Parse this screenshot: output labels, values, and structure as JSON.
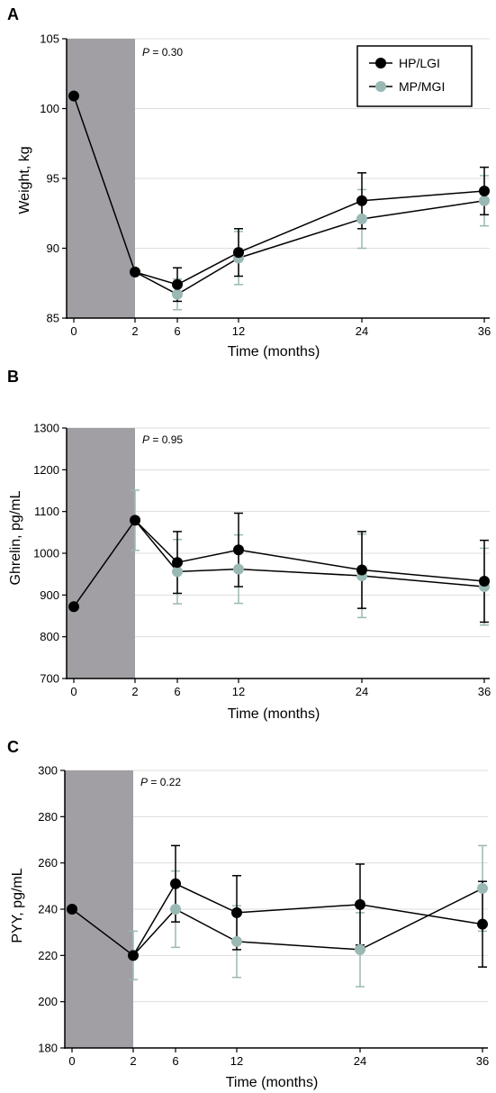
{
  "colors": {
    "series_hp": "#000000",
    "series_mp": "#9ab8b4",
    "shade": "#a19fa4",
    "grid": "#dddddd"
  },
  "legend": {
    "items": [
      "HP/LGI",
      "MP/MGI"
    ]
  },
  "chart_data": [
    {
      "panel_label": "A",
      "type": "line",
      "p_prefix": "P",
      "p_suffix": " = 0.30",
      "xlabel": "Time (months)",
      "ylabel": "Weight, kg",
      "x_ticks": [
        "0",
        "2",
        "6",
        "12",
        "24",
        "36"
      ],
      "y_ticks": [
        85,
        90,
        95,
        100,
        105
      ],
      "ylim": [
        85,
        105
      ],
      "shaded_interval": [
        "0",
        "2"
      ],
      "grid": true,
      "legend_position": "top-right",
      "series": [
        {
          "name": "HP/LGI",
          "points": [
            {
              "x": "0",
              "y": 100.9
            },
            {
              "x": "2",
              "y": 88.3
            },
            {
              "x": "6",
              "y": 87.4,
              "err": 1.2
            },
            {
              "x": "12",
              "y": 89.7,
              "err": 1.7
            },
            {
              "x": "24",
              "y": 93.4,
              "err": 2.0
            },
            {
              "x": "36",
              "y": 94.1,
              "err": 1.7
            }
          ]
        },
        {
          "name": "MP/MGI",
          "points": [
            {
              "x": "2",
              "y": 88.3
            },
            {
              "x": "6",
              "y": 86.7,
              "err": 1.1
            },
            {
              "x": "12",
              "y": 89.3,
              "err": 1.9
            },
            {
              "x": "24",
              "y": 92.1,
              "err": 2.1
            },
            {
              "x": "36",
              "y": 93.4,
              "err": 1.8
            }
          ]
        }
      ]
    },
    {
      "panel_label": "B",
      "type": "line",
      "p_prefix": "P",
      "p_suffix": " = 0.95",
      "xlabel": "Time (months)",
      "ylabel": "Ghrelin, pg/mL",
      "x_ticks": [
        "0",
        "2",
        "6",
        "12",
        "24",
        "36"
      ],
      "y_ticks": [
        700,
        800,
        900,
        1000,
        1100,
        1200,
        1300
      ],
      "ylim": [
        700,
        1300
      ],
      "shaded_interval": [
        "0",
        "2"
      ],
      "grid": true,
      "series": [
        {
          "name": "HP/LGI",
          "points": [
            {
              "x": "0",
              "y": 872
            },
            {
              "x": "2",
              "y": 1079
            },
            {
              "x": "6",
              "y": 978,
              "err": 74
            },
            {
              "x": "12",
              "y": 1008,
              "err": 88
            },
            {
              "x": "24",
              "y": 960,
              "err": 92
            },
            {
              "x": "36",
              "y": 933,
              "err": 98
            }
          ]
        },
        {
          "name": "MP/MGI",
          "points": [
            {
              "x": "2",
              "y": 1079,
              "err": 72
            },
            {
              "x": "6",
              "y": 956,
              "err": 77
            },
            {
              "x": "12",
              "y": 962,
              "err": 82
            },
            {
              "x": "24",
              "y": 946,
              "err": 100
            },
            {
              "x": "36",
              "y": 920,
              "err": 92
            }
          ]
        }
      ]
    },
    {
      "panel_label": "C",
      "type": "line",
      "p_prefix": "P",
      "p_suffix": " = 0.22",
      "xlabel": "Time (months)",
      "ylabel": "PYY, pg/mL",
      "x_ticks": [
        "0",
        "2",
        "6",
        "12",
        "24",
        "36"
      ],
      "y_ticks": [
        180,
        200,
        220,
        240,
        260,
        280,
        300
      ],
      "ylim": [
        180,
        300
      ],
      "shaded_interval": [
        "0",
        "2"
      ],
      "grid": true,
      "series": [
        {
          "name": "HP/LGI",
          "points": [
            {
              "x": "0",
              "y": 240
            },
            {
              "x": "2",
              "y": 220
            },
            {
              "x": "6",
              "y": 251,
              "err": 16.5
            },
            {
              "x": "12",
              "y": 238.5,
              "err": 16
            },
            {
              "x": "24",
              "y": 242,
              "err": 17.5
            },
            {
              "x": "36",
              "y": 233.5,
              "err": 18.5
            }
          ]
        },
        {
          "name": "MP/MGI",
          "points": [
            {
              "x": "2",
              "y": 220,
              "err": 10.5
            },
            {
              "x": "6",
              "y": 240,
              "err": 16.5
            },
            {
              "x": "12",
              "y": 226,
              "err": 15.5
            },
            {
              "x": "24",
              "y": 222.5,
              "err": 16
            },
            {
              "x": "36",
              "y": 249,
              "err": 18.5
            }
          ]
        }
      ]
    }
  ]
}
